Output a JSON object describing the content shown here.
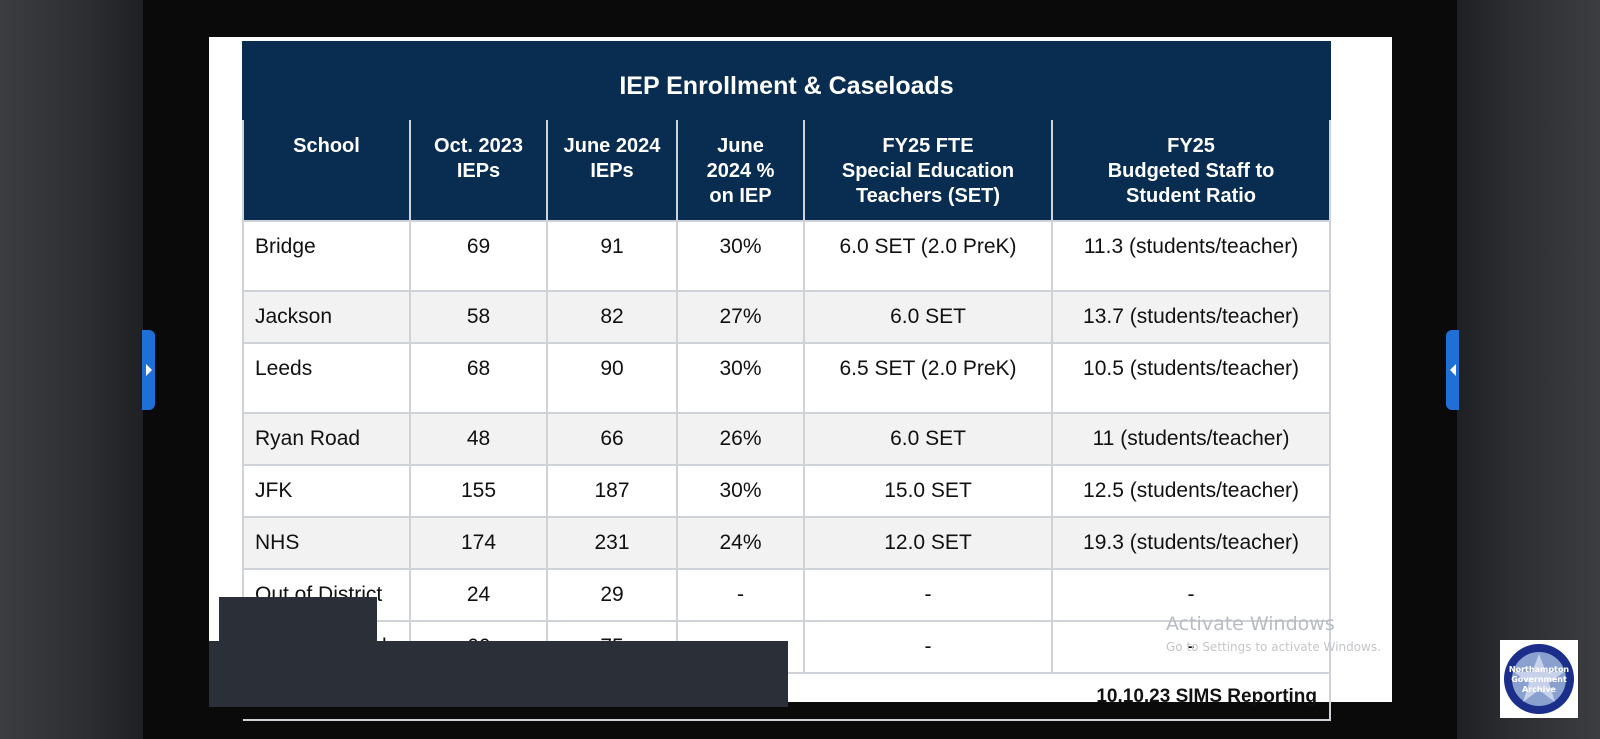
{
  "slide": {
    "title": "IEP Enrollment & Caseloads",
    "headers": [
      "School",
      "Oct. 2023\nIEPs",
      "June 2024\nIEPs",
      "June\n2024 %\non IEP",
      "FY25 FTE\nSpecial Education\nTeachers (SET)",
      "FY25\nBudgeted Staff to\nStudent Ratio"
    ],
    "rows": [
      {
        "school": "Bridge",
        "oct2023": "69",
        "june2024": "91",
        "pct": "30%",
        "fte": "6.0 SET (2.0 PreK)",
        "ratio": "11.3 (students/teacher)"
      },
      {
        "school": "Jackson",
        "oct2023": "58",
        "june2024": "82",
        "pct": "27%",
        "fte": "6.0 SET",
        "ratio": "13.7 (students/teacher)"
      },
      {
        "school": "Leeds",
        "oct2023": "68",
        "june2024": "90",
        "pct": "30%",
        "fte": "6.5 SET (2.0 PreK)",
        "ratio": "10.5 (students/teacher)"
      },
      {
        "school": "Ryan Road",
        "oct2023": "48",
        "june2024": "66",
        "pct": "26%",
        "fte": "6.0 SET",
        "ratio": "11 (students/teacher)"
      },
      {
        "school": "JFK",
        "oct2023": "155",
        "june2024": "187",
        "pct": "30%",
        "fte": "15.0 SET",
        "ratio": "12.5 (students/teacher)"
      },
      {
        "school": "NHS",
        "oct2023": "174",
        "june2024": "231",
        "pct": "24%",
        "fte": "12.0 SET",
        "ratio": "19.3 (students/teacher)"
      },
      {
        "school": "Out of District",
        "oct2023": "24",
        "june2024": "29",
        "pct": "-",
        "fte": "-",
        "ratio": "-"
      },
      {
        "school": "ly",
        "oct2023": "66",
        "june2024": "75",
        "pct": "-",
        "fte": "-",
        "ratio": "-"
      }
    ],
    "source": "10.10.23 SIMS Reporting"
  },
  "watermark": {
    "line1": "Activate Windows",
    "line2": "Go to Settings to activate Windows."
  },
  "logo": {
    "text": "Northampton Government Archive",
    "colors": {
      "ring": "#1b2f8a",
      "inner": "#8aa0cf"
    }
  },
  "colors": {
    "header_bg": "#082d51",
    "row_shade": "#f2f2f3",
    "nav_tab": "#1e6fd6"
  }
}
